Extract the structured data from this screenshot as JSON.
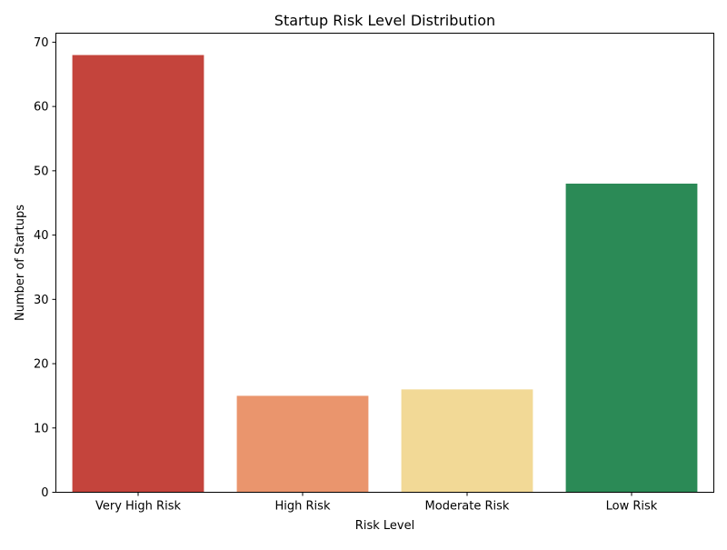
{
  "chart_data": {
    "type": "bar",
    "title": "Startup Risk Level Distribution",
    "xlabel": "Risk Level",
    "ylabel": "Number of Startups",
    "categories": [
      "Very High Risk",
      "High Risk",
      "Moderate Risk",
      "Low Risk"
    ],
    "values": [
      68,
      15,
      16,
      48
    ],
    "colors": [
      "#c4443c",
      "#ea956d",
      "#f2d996",
      "#2b8a56"
    ],
    "ylim": [
      0,
      71.4
    ],
    "yticks": [
      0,
      10,
      20,
      30,
      40,
      50,
      60,
      70
    ],
    "grid": false,
    "legend": "none"
  }
}
